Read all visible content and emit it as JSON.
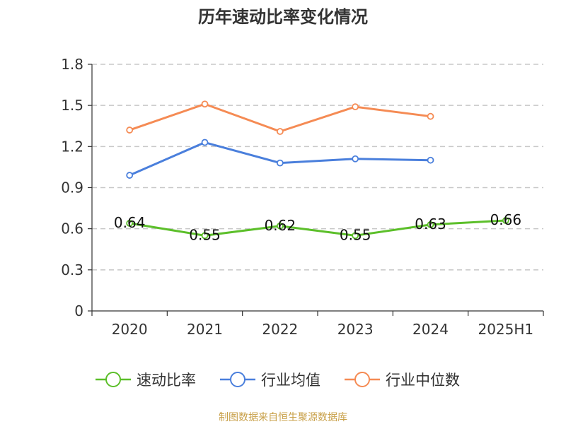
{
  "chart_data": {
    "type": "line",
    "title": "历年速动比率变化情况",
    "categories": [
      "2020",
      "2021",
      "2022",
      "2023",
      "2024",
      "2025H1"
    ],
    "ylim": [
      0,
      1.8
    ],
    "yticks": [
      "0",
      "0.3",
      "0.6",
      "0.9",
      "1.2",
      "1.5",
      "1.8"
    ],
    "grid": true,
    "legend_position": "bottom",
    "series": [
      {
        "name": "速动比率",
        "color": "#5cbf2a",
        "values": [
          0.64,
          0.55,
          0.62,
          0.55,
          0.63,
          0.66
        ],
        "labels": [
          "0.64",
          "0.55",
          "0.62",
          "0.55",
          "0.63",
          "0.66"
        ]
      },
      {
        "name": "行业均值",
        "color": "#4a7fdc",
        "values": [
          0.99,
          1.23,
          1.08,
          1.11,
          1.1,
          null
        ]
      },
      {
        "name": "行业中位数",
        "color": "#f58b54",
        "values": [
          1.32,
          1.51,
          1.31,
          1.49,
          1.42,
          null
        ]
      }
    ],
    "source": "制图数据来自恒生聚源数据库",
    "source_color": "#c8a049"
  }
}
